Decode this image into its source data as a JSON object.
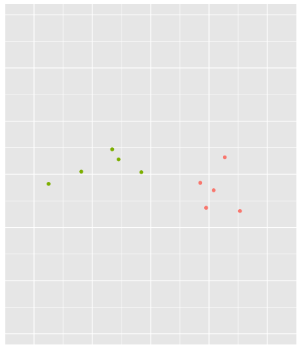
{
  "chart_data": {
    "type": "scatter",
    "title": "",
    "xlabel": "",
    "ylabel": "",
    "xlim": [
      -2.5,
      2.5
    ],
    "ylim": [
      -3.2,
      3.2
    ],
    "grid": true,
    "panel_background": "#E6E6E6",
    "grid_color": "#FFFFFF",
    "x_major_breaks": [
      -2,
      -1,
      0,
      1,
      2
    ],
    "y_major_breaks": [
      -3,
      -2,
      -1,
      0,
      1,
      2,
      3
    ],
    "series": [
      {
        "color": "#F8766D",
        "points": [
          {
            "x": 1.27,
            "y": 0.32
          },
          {
            "x": 0.85,
            "y": -0.16
          },
          {
            "x": 1.08,
            "y": -0.3
          },
          {
            "x": 0.95,
            "y": -0.63
          },
          {
            "x": 1.53,
            "y": -0.69
          }
        ]
      },
      {
        "color": "#7CAE00",
        "points": [
          {
            "x": -1.75,
            "y": -0.18
          },
          {
            "x": -1.19,
            "y": 0.05
          },
          {
            "x": -0.66,
            "y": 0.47
          },
          {
            "x": -0.55,
            "y": 0.28
          },
          {
            "x": -0.16,
            "y": 0.04
          }
        ]
      }
    ]
  }
}
